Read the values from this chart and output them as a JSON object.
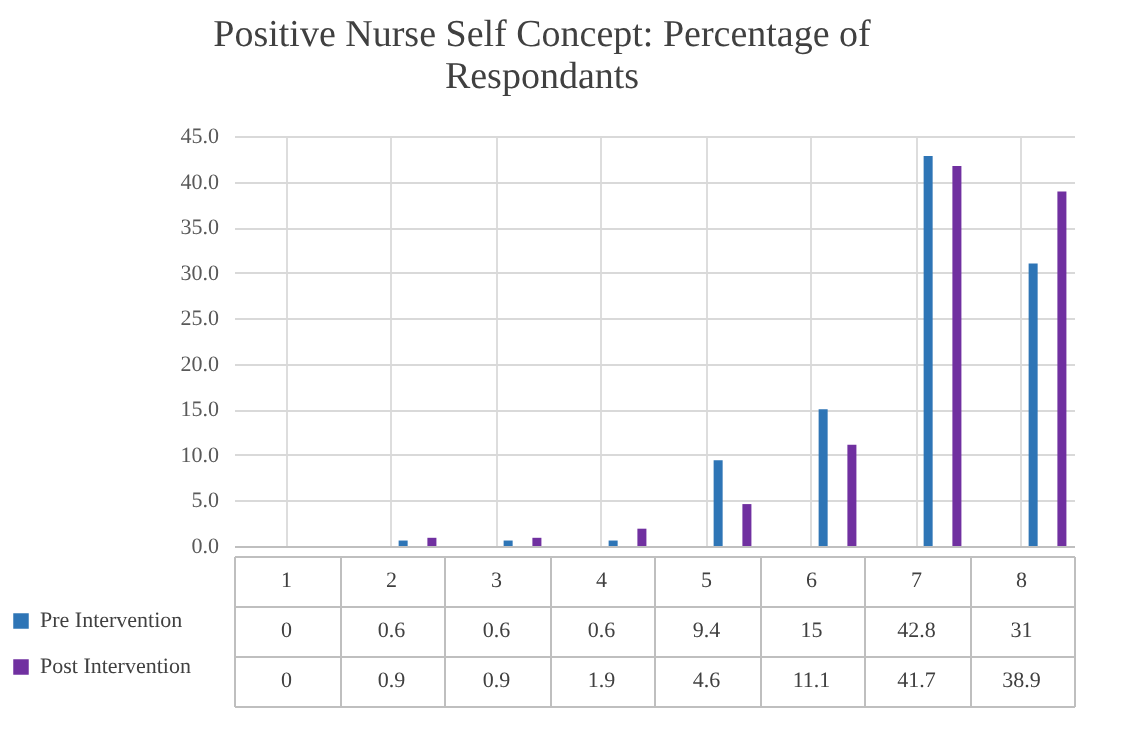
{
  "chart_data": {
    "type": "bar",
    "title": "Positive Nurse Self Concept: Percentage of Respondants",
    "categories": [
      "1",
      "2",
      "3",
      "4",
      "5",
      "6",
      "7",
      "8"
    ],
    "series": [
      {
        "name": "Pre Intervention",
        "color": "#2e75b6",
        "values": [
          0,
          0.6,
          0.6,
          0.6,
          9.4,
          15,
          42.8,
          31
        ]
      },
      {
        "name": "Post Intervention",
        "color": "#7030a0",
        "values": [
          0,
          0.9,
          0.9,
          1.9,
          4.6,
          11.1,
          41.7,
          38.9
        ]
      }
    ],
    "ylim": [
      0,
      45
    ],
    "yticks": [
      {
        "value": 0,
        "label": "0.0"
      },
      {
        "value": 5,
        "label": "5.0"
      },
      {
        "value": 10,
        "label": "10.0"
      },
      {
        "value": 15,
        "label": "15.0"
      },
      {
        "value": 20,
        "label": "20.0"
      },
      {
        "value": 25,
        "label": "25.0"
      },
      {
        "value": 30,
        "label": "30.0"
      },
      {
        "value": 35,
        "label": "35.0"
      },
      {
        "value": 40,
        "label": "40.0"
      },
      {
        "value": 45,
        "label": "45.0"
      }
    ],
    "grid": true,
    "legend": "bottom",
    "data_labels": true
  }
}
